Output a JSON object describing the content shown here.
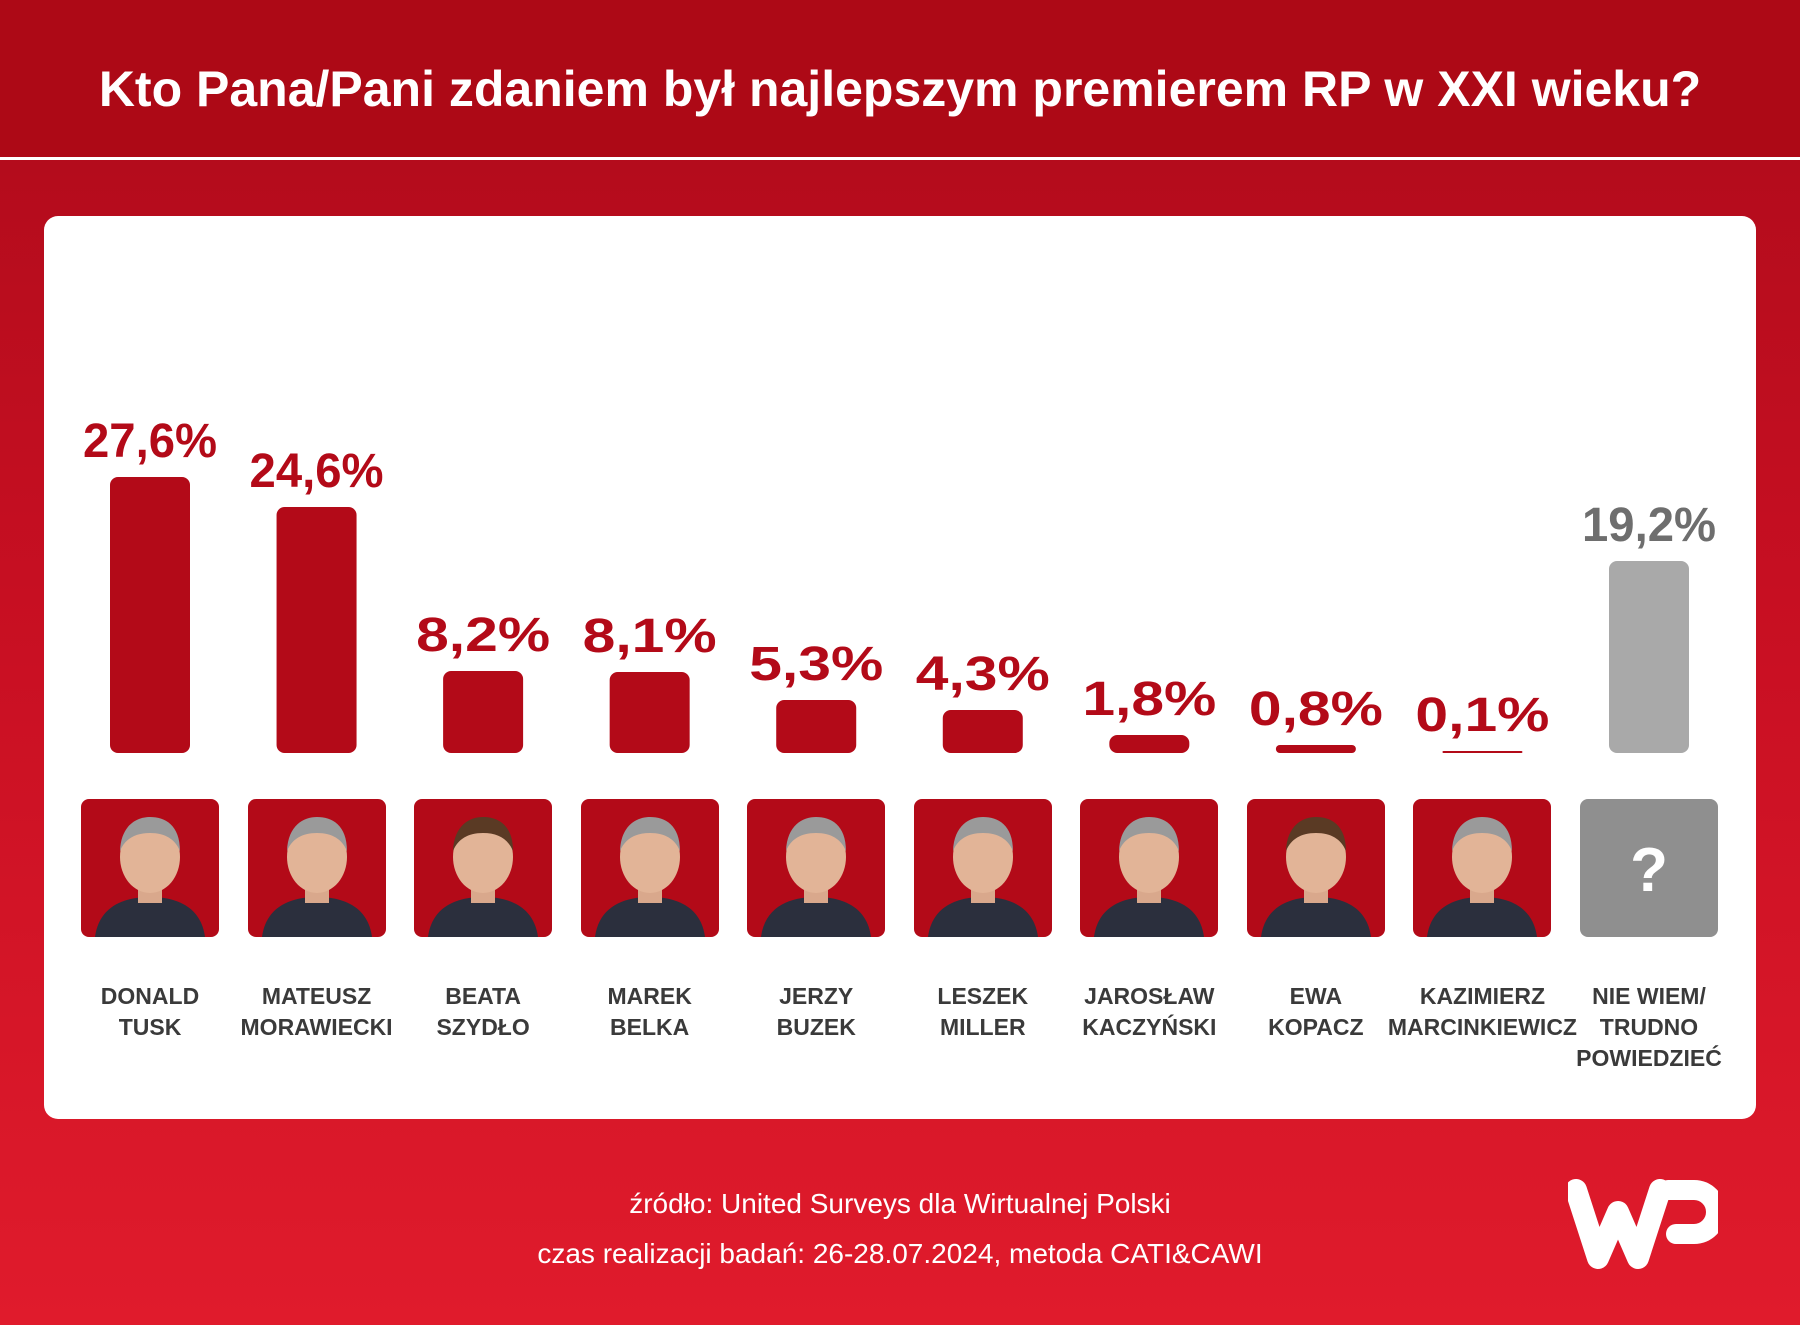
{
  "header": {
    "title": "Kto Pana/Pani zdaniem był najlepszym premierem RP w XXI wieku?"
  },
  "chart_data": {
    "type": "bar",
    "title": "Kto Pana/Pani zdaniem był najlepszym premierem RP w XXI wieku?",
    "categories": [
      "DONALD\nTUSK",
      "MATEUSZ\nMORAWIECKI",
      "BEATA\nSZYDŁO",
      "MAREK\nBELKA",
      "JERZY\nBUZEK",
      "LESZEK\nMILLER",
      "JAROSŁAW\nKACZYŃSKI",
      "EWA\nKOPACZ",
      "KAZIMIERZ\nMARCINKIEWICZ",
      "NIE WIEM/\nTRUDNO\nPOWIEDZIEĆ"
    ],
    "values": [
      27.6,
      24.6,
      8.2,
      8.1,
      5.3,
      4.3,
      1.8,
      0.8,
      0.1,
      19.2
    ],
    "value_labels": [
      "27,6%",
      "24,6%",
      "8,2%",
      "8,1%",
      "5,3%",
      "4,3%",
      "1,8%",
      "0,8%",
      "0,1%",
      "19,2%"
    ],
    "colors": {
      "bar": "#b30a18",
      "undecided_bar": "#a9a9a9",
      "label": "#b30a18",
      "undecided_label": "#6e6e6e"
    },
    "ylim": [
      0,
      30
    ],
    "grid": false,
    "legend": "none"
  },
  "footer": {
    "source": "źródło: United Surveys dla Wirtualnej Polski",
    "method": "czas realizacji badań: 26-28.07.2024, metoda CATI&CAWI"
  },
  "logo": {
    "icon": "wp-logo"
  }
}
